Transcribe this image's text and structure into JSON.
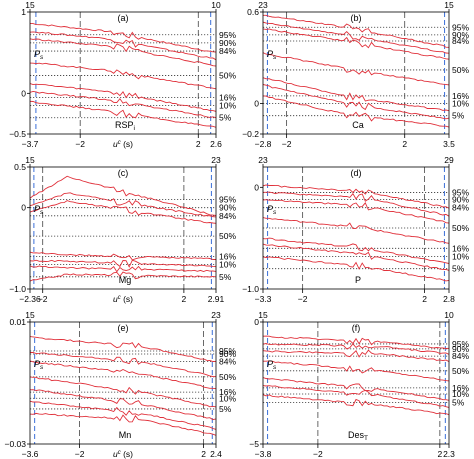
{
  "chart_data": [
    {
      "type": "line",
      "panel_label": "(a)",
      "inner_label": "RSP",
      "inner_label_sub": "i",
      "ylabel": "P",
      "ylabel_sub": "s",
      "xlabel": "u",
      "xlabel_sup": "c",
      "xlabel_unit": " (s)",
      "x_range": [
        -3.7,
        2.6
      ],
      "y_range": [
        -0.5,
        1.0
      ],
      "x_ticks": [
        {
          "value": -3.7,
          "label": "−3.7"
        },
        {
          "value": -2,
          "label": "−2"
        },
        {
          "value": 2,
          "label": "2"
        },
        {
          "value": 2.6,
          "label": "2.6"
        }
      ],
      "y_ticks": [
        {
          "value": 1.0,
          "label": "1"
        },
        {
          "value": 0.0,
          "label": "0"
        },
        {
          "value": -0.5,
          "label": "−0.5"
        }
      ],
      "top_ticks": [
        {
          "value": -3.7,
          "label": "15"
        },
        {
          "value": 2.6,
          "label": "10"
        }
      ],
      "vlines_blue": [
        -3.5,
        2.42
      ],
      "vlines_black": [
        -2,
        2
      ],
      "percentile_levels": [
        0.72,
        0.62,
        0.52,
        0.22,
        -0.05,
        -0.15,
        -0.3
      ],
      "percentile_labels": [
        "95%",
        "90%",
        "84%",
        "50%",
        "16%",
        "10%",
        "5%"
      ],
      "series": [
        {
          "x": [
            -3.7,
            -1.0,
            2.6
          ],
          "y": [
            0.86,
            0.76,
            0.5
          ]
        },
        {
          "x": [
            -3.7,
            -1.0,
            2.6
          ],
          "y": [
            0.76,
            0.67,
            0.42
          ]
        },
        {
          "x": [
            -3.7,
            -1.0,
            2.6
          ],
          "y": [
            0.67,
            0.58,
            0.34
          ]
        },
        {
          "x": [
            -3.7,
            -1.0,
            2.6
          ],
          "y": [
            0.38,
            0.28,
            0.06
          ]
        },
        {
          "x": [
            -3.7,
            -1.0,
            2.6
          ],
          "y": [
            0.12,
            0.02,
            -0.22
          ]
        },
        {
          "x": [
            -3.7,
            -1.0,
            2.6
          ],
          "y": [
            0.02,
            -0.08,
            -0.3
          ]
        },
        {
          "x": [
            -3.7,
            -1.0,
            2.6
          ],
          "y": [
            -0.1,
            -0.22,
            -0.42
          ]
        }
      ]
    },
    {
      "type": "line",
      "panel_label": "(b)",
      "inner_label": "Ca",
      "inner_label_sub": "",
      "ylabel": "P",
      "ylabel_sub": "s",
      "xlabel": "",
      "xlabel_sup": "",
      "xlabel_unit": "",
      "x_range": [
        -2.8,
        3.5
      ],
      "y_range": [
        -0.2,
        0.6
      ],
      "x_ticks": [
        {
          "value": -2.8,
          "label": "−2.8"
        },
        {
          "value": -2,
          "label": "−2"
        },
        {
          "value": 2,
          "label": "2"
        },
        {
          "value": 3.5,
          "label": "3.5"
        }
      ],
      "y_ticks": [
        {
          "value": 0.6,
          "label": "0.6"
        },
        {
          "value": 0.0,
          "label": "0"
        },
        {
          "value": -0.2,
          "label": "−0.2"
        }
      ],
      "top_ticks": [
        {
          "value": -2.8,
          "label": "23"
        },
        {
          "value": 3.5,
          "label": "15"
        }
      ],
      "vlines_blue": [
        -2.65,
        3.35
      ],
      "vlines_black": [
        -2,
        2
      ],
      "percentile_levels": [
        0.5,
        0.45,
        0.41,
        0.22,
        0.05,
        0.0,
        -0.08
      ],
      "percentile_labels": [
        "95%",
        "90%",
        "84%",
        "50%",
        "16%",
        "10%",
        "5%"
      ],
      "series": [
        {
          "x": [
            -2.8,
            0.0,
            3.5
          ],
          "y": [
            0.58,
            0.5,
            0.37
          ]
        },
        {
          "x": [
            -2.8,
            0.0,
            3.5
          ],
          "y": [
            0.53,
            0.45,
            0.33
          ]
        },
        {
          "x": [
            -2.8,
            0.0,
            3.5
          ],
          "y": [
            0.49,
            0.41,
            0.29
          ]
        },
        {
          "x": [
            -2.8,
            0.0,
            3.5
          ],
          "y": [
            0.33,
            0.23,
            0.12
          ]
        },
        {
          "x": [
            -2.8,
            0.0,
            3.5
          ],
          "y": [
            0.17,
            0.05,
            -0.05
          ]
        },
        {
          "x": [
            -2.8,
            0.0,
            3.5
          ],
          "y": [
            0.12,
            0.0,
            -0.1
          ]
        },
        {
          "x": [
            -2.8,
            0.0,
            3.5
          ],
          "y": [
            0.05,
            -0.07,
            -0.15
          ]
        }
      ]
    },
    {
      "type": "line",
      "panel_label": "(c)",
      "inner_label": "Mg",
      "inner_label_sub": "",
      "ylabel": "P",
      "ylabel_sub": "s",
      "xlabel": "u",
      "xlabel_sup": "c",
      "xlabel_unit": " (s)",
      "x_range": [
        -2.36,
        2.91
      ],
      "y_range": [
        -1.0,
        0.5
      ],
      "x_ticks": [
        {
          "value": -2.36,
          "label": "−2.36"
        },
        {
          "value": -2,
          "label": "−2"
        },
        {
          "value": 2,
          "label": "2"
        },
        {
          "value": 2.91,
          "label": "2.91"
        }
      ],
      "y_ticks": [
        {
          "value": 0.5,
          "label": "0.5"
        },
        {
          "value": 0.0,
          "label": "0"
        },
        {
          "value": -1.0,
          "label": "−1.0"
        }
      ],
      "top_ticks": [
        {
          "value": -2.36,
          "label": "15"
        },
        {
          "value": 2.91,
          "label": "23"
        }
      ],
      "vlines_blue": [
        -2.25,
        2.78
      ],
      "vlines_black": [
        -2,
        2
      ],
      "percentile_levels": [
        0.1,
        0.0,
        -0.1,
        -0.35,
        -0.6,
        -0.7,
        -0.85
      ],
      "percentile_labels": [
        "95%",
        "90%",
        "84%",
        "50%",
        "16%",
        "10%",
        "5%"
      ],
      "series": [
        {
          "x": [
            -2.36,
            -1.3,
            2.91
          ],
          "y": [
            0.12,
            0.38,
            -0.1
          ]
        },
        {
          "x": [
            -2.36,
            -1.3,
            2.91
          ],
          "y": [
            0.02,
            0.18,
            -0.12
          ]
        },
        {
          "x": [
            -2.36,
            -1.3,
            2.91
          ],
          "y": [
            -0.05,
            0.08,
            -0.2
          ]
        },
        {
          "x": [
            -2.36,
            -1.3,
            2.91
          ],
          "y": [
            -0.55,
            -0.58,
            -0.63
          ]
        },
        {
          "x": [
            -2.36,
            -1.3,
            2.91
          ],
          "y": [
            -0.65,
            -0.66,
            -0.72
          ]
        },
        {
          "x": [
            -2.36,
            -1.3,
            2.91
          ],
          "y": [
            -0.72,
            -0.74,
            -0.78
          ]
        },
        {
          "x": [
            -2.36,
            -1.3,
            2.91
          ],
          "y": [
            -0.9,
            -0.82,
            -0.85
          ]
        }
      ]
    },
    {
      "type": "line",
      "panel_label": "(d)",
      "inner_label": "P",
      "inner_label_sub": "",
      "ylabel": "P",
      "ylabel_sub": "s",
      "xlabel": "",
      "xlabel_sup": "",
      "xlabel_unit": "",
      "x_range": [
        -3.3,
        2.8
      ],
      "y_range": [
        -1.0,
        0.2
      ],
      "x_ticks": [
        {
          "value": -3.3,
          "label": "−3.3"
        },
        {
          "value": -2,
          "label": "−2"
        },
        {
          "value": 2,
          "label": "2"
        },
        {
          "value": 2.8,
          "label": "2.8"
        }
      ],
      "y_ticks": [
        {
          "value": 0.0,
          "label": "0"
        },
        {
          "value": -1.0,
          "label": "−1.0"
        }
      ],
      "top_ticks": [
        {
          "value": -3.3,
          "label": "23"
        },
        {
          "value": 2.8,
          "label": "29"
        }
      ],
      "vlines_blue": [
        -3.15,
        2.65
      ],
      "vlines_black": [
        -2,
        2
      ],
      "percentile_levels": [
        -0.05,
        -0.12,
        -0.2,
        -0.4,
        -0.6,
        -0.68,
        -0.8
      ],
      "percentile_labels": [
        "95%",
        "90%",
        "84%",
        "50%",
        "16%",
        "10%",
        "5%"
      ],
      "series": [
        {
          "x": [
            -3.3,
            0.0,
            2.8
          ],
          "y": [
            0.02,
            -0.04,
            -0.2
          ]
        },
        {
          "x": [
            -3.3,
            0.0,
            2.8
          ],
          "y": [
            -0.05,
            -0.1,
            -0.28
          ]
        },
        {
          "x": [
            -3.3,
            0.0,
            2.8
          ],
          "y": [
            -0.12,
            -0.18,
            -0.35
          ]
        },
        {
          "x": [
            -3.3,
            0.0,
            2.8
          ],
          "y": [
            -0.3,
            -0.4,
            -0.55
          ]
        },
        {
          "x": [
            -3.3,
            0.0,
            2.8
          ],
          "y": [
            -0.5,
            -0.6,
            -0.75
          ]
        },
        {
          "x": [
            -3.3,
            0.0,
            2.8
          ],
          "y": [
            -0.56,
            -0.66,
            -0.82
          ]
        },
        {
          "x": [
            -3.3,
            0.0,
            2.8
          ],
          "y": [
            -0.68,
            -0.78,
            -0.92
          ]
        }
      ]
    },
    {
      "type": "line",
      "panel_label": "(e)",
      "inner_label": "Mn",
      "inner_label_sub": "",
      "ylabel": "P",
      "ylabel_sub": "s",
      "xlabel": "u",
      "xlabel_sup": "c",
      "xlabel_unit": " (s)",
      "x_range": [
        -3.6,
        2.4
      ],
      "y_range": [
        -0.03,
        0.01
      ],
      "x_ticks": [
        {
          "value": -3.6,
          "label": "−3.6"
        },
        {
          "value": -2,
          "label": "−2"
        },
        {
          "value": 2,
          "label": "2"
        },
        {
          "value": 2.4,
          "label": "2.4"
        }
      ],
      "y_ticks": [
        {
          "value": 0.01,
          "label": "0.01"
        },
        {
          "value": -0.03,
          "label": "−0.03"
        }
      ],
      "top_ticks": [
        {
          "value": -3.6,
          "label": "15"
        },
        {
          "value": 2.4,
          "label": "23"
        }
      ],
      "vlines_blue": [
        -3.45,
        2.28
      ],
      "vlines_black": [
        -2,
        2
      ],
      "percentile_levels": [
        0.0005,
        -0.0005,
        -0.003,
        -0.008,
        -0.013,
        -0.015,
        -0.0185
      ],
      "percentile_labels": [
        "95%",
        "90%",
        "84%",
        "50%",
        "16%",
        "10%",
        "5%"
      ],
      "series": [
        {
          "x": [
            -3.6,
            0.0,
            2.4
          ],
          "y": [
            0.005,
            0.002,
            -0.003
          ]
        },
        {
          "x": [
            -3.6,
            0.0,
            2.4
          ],
          "y": [
            0.0,
            -0.003,
            -0.008
          ]
        },
        {
          "x": [
            -3.6,
            0.0,
            2.4
          ],
          "y": [
            -0.003,
            -0.007,
            -0.012
          ]
        },
        {
          "x": [
            -3.6,
            0.0,
            2.4
          ],
          "y": [
            -0.008,
            -0.013,
            -0.018
          ]
        },
        {
          "x": [
            -3.6,
            0.0,
            2.4
          ],
          "y": [
            -0.012,
            -0.017,
            -0.022
          ]
        },
        {
          "x": [
            -3.6,
            0.0,
            2.4
          ],
          "y": [
            -0.016,
            -0.02,
            -0.025
          ]
        },
        {
          "x": [
            -3.6,
            0.0,
            2.4
          ],
          "y": [
            -0.02,
            -0.022,
            -0.027
          ]
        }
      ]
    },
    {
      "type": "line",
      "panel_label": "(f)",
      "inner_label": "Des",
      "inner_label_sub": "T",
      "ylabel": "P",
      "ylabel_sub": "s",
      "xlabel": "",
      "xlabel_sup": "",
      "xlabel_unit": "",
      "x_range": [
        -3.8,
        2.3
      ],
      "y_range": [
        -5.0,
        0.0
      ],
      "x_ticks": [
        {
          "value": -3.8,
          "label": "−3.8"
        },
        {
          "value": -2,
          "label": "−2"
        },
        {
          "value": 2,
          "label": "2"
        },
        {
          "value": 2.3,
          "label": "2.3"
        }
      ],
      "y_ticks": [
        {
          "value": 0.0,
          "label": "0"
        },
        {
          "value": -5.0,
          "label": "−5"
        }
      ],
      "top_ticks": [
        {
          "value": -3.8,
          "label": "15"
        },
        {
          "value": 2.3,
          "label": "10"
        }
      ],
      "vlines_blue": [
        -3.65,
        2.18
      ],
      "vlines_black": [
        -2,
        2
      ],
      "percentile_levels": [
        -0.9,
        -1.1,
        -1.4,
        -2.0,
        -2.7,
        -2.95,
        -3.3
      ],
      "percentile_labels": [
        "95%",
        "90%",
        "84%",
        "50%",
        "16%",
        "10%",
        "5%"
      ],
      "series": [
        {
          "x": [
            -3.8,
            0.0,
            2.3
          ],
          "y": [
            -0.6,
            -0.8,
            -1.1
          ]
        },
        {
          "x": [
            -3.8,
            0.0,
            2.3
          ],
          "y": [
            -0.9,
            -1.0,
            -1.3
          ]
        },
        {
          "x": [
            -3.8,
            0.0,
            2.3
          ],
          "y": [
            -1.2,
            -1.3,
            -1.6
          ]
        },
        {
          "x": [
            -3.8,
            0.0,
            2.3
          ],
          "y": [
            -1.6,
            -2.0,
            -2.4
          ]
        },
        {
          "x": [
            -3.8,
            0.0,
            2.3
          ],
          "y": [
            -2.3,
            -2.75,
            -3.2
          ]
        },
        {
          "x": [
            -3.8,
            0.0,
            2.3
          ],
          "y": [
            -2.6,
            -3.0,
            -3.5
          ]
        },
        {
          "x": [
            -3.8,
            0.0,
            2.3
          ],
          "y": [
            -3.0,
            -3.4,
            -3.8
          ]
        }
      ]
    }
  ],
  "colors": {
    "series": "#e0303a",
    "vline_blue": "#3b6fd8",
    "vline_black": "#444444",
    "percentile_line": "#333333",
    "axis": "#000000"
  }
}
